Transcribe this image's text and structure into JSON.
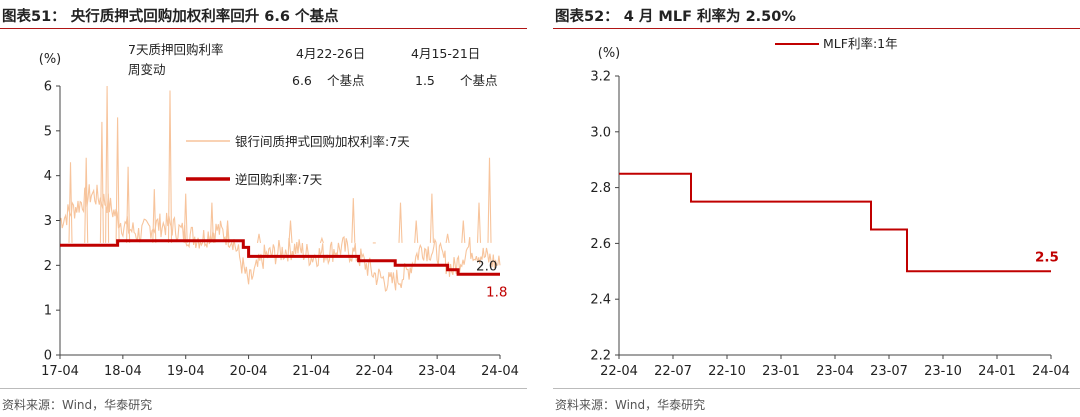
{
  "left": {
    "title": "图表51： 央行质押式回购加权利率回升 6.6 个基点",
    "source": "资料来源：Wind，华泰研究",
    "chart_data": {
      "type": "line",
      "ylabel": "(%)",
      "ylim": [
        0,
        6
      ],
      "yticks": [
        "0",
        "1",
        "2",
        "3",
        "4",
        "5",
        "6"
      ],
      "xticks": [
        "17-04",
        "18-04",
        "19-04",
        "20-04",
        "21-04",
        "22-04",
        "23-04",
        "24-04"
      ],
      "grid": false,
      "legend_position": "middle",
      "annotations": {
        "header_left_line1": "7天质押回购利率",
        "header_left_line2": "周变动",
        "period1": "4月22-26日",
        "period1_value": "6.6",
        "period1_unit": "个基点",
        "period2": "4月15-21日",
        "period2_value": "1.5",
        "period2_unit": "个基点",
        "end_label_series1": "2.0",
        "end_label_series2": "1.8"
      },
      "series": [
        {
          "name": "银行间质押式回购加权利率:7天",
          "color": "#f7c49c",
          "x": [
            "2017-04",
            "2017-07",
            "2017-10",
            "2018-01",
            "2018-04",
            "2018-07",
            "2018-10",
            "2019-01",
            "2019-04",
            "2019-07",
            "2019-10",
            "2020-01",
            "2020-04",
            "2020-07",
            "2020-10",
            "2021-01",
            "2021-04",
            "2021-07",
            "2021-10",
            "2022-01",
            "2022-04",
            "2022-07",
            "2022-10",
            "2023-01",
            "2023-04",
            "2023-07",
            "2023-10",
            "2024-01",
            "2024-04"
          ],
          "values": [
            3.0,
            3.3,
            3.6,
            3.4,
            2.9,
            2.7,
            2.9,
            2.9,
            2.7,
            2.6,
            2.8,
            2.6,
            1.6,
            2.2,
            2.3,
            2.4,
            2.2,
            2.3,
            2.4,
            2.2,
            1.8,
            1.6,
            1.8,
            2.4,
            2.3,
            1.9,
            2.4,
            2.2,
            2.0
          ],
          "spikes": [
            {
              "x": "2017-06",
              "y": 4.3
            },
            {
              "x": "2017-09",
              "y": 4.4
            },
            {
              "x": "2017-12",
              "y": 5.2
            },
            {
              "x": "2018-01",
              "y": 6.0
            },
            {
              "x": "2018-03",
              "y": 5.3
            },
            {
              "x": "2018-05",
              "y": 4.2
            },
            {
              "x": "2018-10",
              "y": 3.7
            },
            {
              "x": "2019-01",
              "y": 5.9
            },
            {
              "x": "2019-04",
              "y": 3.6
            },
            {
              "x": "2019-09",
              "y": 3.4
            },
            {
              "x": "2019-12",
              "y": 3.0
            },
            {
              "x": "2020-06",
              "y": 2.7
            },
            {
              "x": "2020-12",
              "y": 3.0
            },
            {
              "x": "2021-06",
              "y": 2.6
            },
            {
              "x": "2021-12",
              "y": 3.5
            },
            {
              "x": "2022-04",
              "y": 2.5
            },
            {
              "x": "2022-09",
              "y": 3.4
            },
            {
              "x": "2022-12",
              "y": 3.0
            },
            {
              "x": "2023-03",
              "y": 3.6
            },
            {
              "x": "2023-06",
              "y": 2.7
            },
            {
              "x": "2023-09",
              "y": 3.0
            },
            {
              "x": "2023-12",
              "y": 3.4
            },
            {
              "x": "2024-02",
              "y": 4.4
            }
          ]
        },
        {
          "name": "逆回购利率:7天",
          "color": "#c00000",
          "x": [
            "2017-04",
            "2018-03",
            "2018-03",
            "2020-03",
            "2020-03",
            "2020-04",
            "2020-04",
            "2022-01",
            "2022-01",
            "2022-08",
            "2022-08",
            "2023-06",
            "2023-06",
            "2023-08",
            "2023-08",
            "2024-04"
          ],
          "values": [
            2.45,
            2.45,
            2.55,
            2.55,
            2.4,
            2.4,
            2.2,
            2.2,
            2.1,
            2.1,
            2.0,
            2.0,
            1.9,
            1.9,
            1.8,
            1.8
          ]
        }
      ]
    }
  },
  "right": {
    "title": "图表52： 4 月 MLF 利率为 2.50%",
    "source": "资料来源：Wind，华泰研究",
    "chart_data": {
      "type": "line",
      "ylabel": "(%)",
      "ylim": [
        2.2,
        3.2
      ],
      "yticks": [
        "2.2",
        "2.4",
        "2.6",
        "2.8",
        "3.0",
        "3.2"
      ],
      "xticks": [
        "22-04",
        "22-07",
        "22-10",
        "23-01",
        "23-04",
        "23-07",
        "23-10",
        "24-01",
        "24-04"
      ],
      "grid": false,
      "legend_position": "top",
      "end_label": "2.5",
      "series": [
        {
          "name": "MLF利率:1年",
          "color": "#c00000",
          "x": [
            "2022-04",
            "2022-08",
            "2022-08",
            "2023-06",
            "2023-06",
            "2023-08",
            "2023-08",
            "2024-04"
          ],
          "values": [
            2.85,
            2.85,
            2.75,
            2.75,
            2.65,
            2.65,
            2.5,
            2.5
          ]
        }
      ]
    }
  }
}
